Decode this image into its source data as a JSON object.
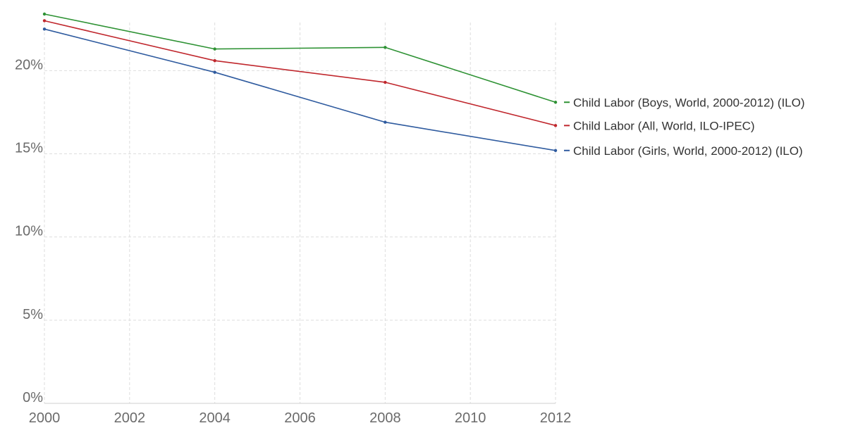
{
  "chart_data": {
    "type": "line",
    "title": "",
    "xlabel": "",
    "ylabel": "",
    "x": [
      2000,
      2004,
      2008,
      2012
    ],
    "xlim": [
      2000,
      2012
    ],
    "ylim": [
      0,
      23.4
    ],
    "x_ticks": [
      2000,
      2002,
      2004,
      2006,
      2008,
      2010,
      2012
    ],
    "x_tick_labels": [
      "2000",
      "2002",
      "2004",
      "2006",
      "2008",
      "2010",
      "2012"
    ],
    "y_ticks": [
      0,
      5,
      10,
      15,
      20
    ],
    "y_tick_labels": [
      "0%",
      "5%",
      "10%",
      "15%",
      "20%"
    ],
    "grid": true,
    "legend": "right",
    "series": [
      {
        "name": "Child Labor (Boys, World, 2000-2012) (ILO)",
        "color": "#2e9234",
        "values": [
          23.4,
          21.3,
          21.4,
          18.1
        ]
      },
      {
        "name": "Child Labor (All, World, ILO-IPEC)",
        "color": "#c0272d",
        "values": [
          23.0,
          20.6,
          19.3,
          16.7
        ]
      },
      {
        "name": "Child Labor (Girls, World, 2000-2012) (ILO)",
        "color": "#2f5b9f",
        "values": [
          22.5,
          19.9,
          16.9,
          15.2
        ]
      }
    ]
  }
}
